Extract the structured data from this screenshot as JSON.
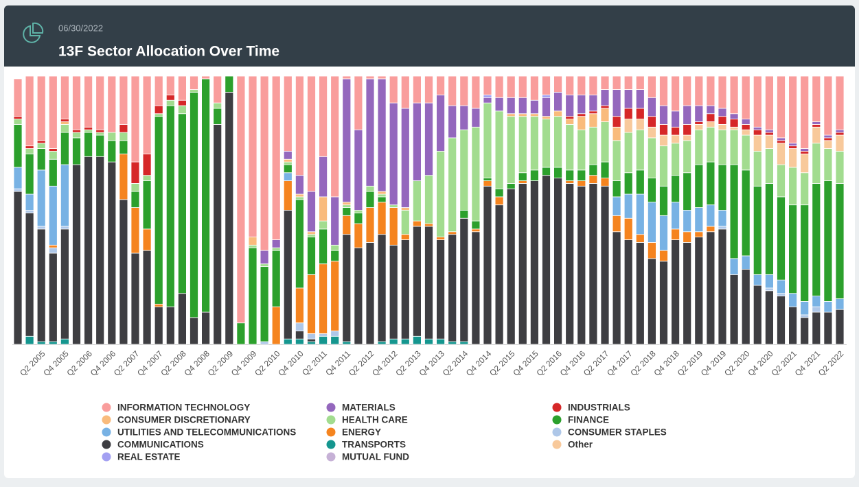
{
  "chart_data": {
    "type": "stacked-bar",
    "title": "13F Sector Allocation Over Time",
    "subtitle": "06/30/2022",
    "ylim": [
      0,
      100
    ],
    "categories": [
      null,
      null,
      "Q2 2005",
      null,
      "Q4 2005",
      null,
      "Q2 2006",
      null,
      "Q4 2006",
      null,
      "Q2 2007",
      null,
      "Q4 2007",
      null,
      "Q2 2008",
      null,
      "Q4 2008",
      null,
      "Q2 2009",
      null,
      "Q4 2009",
      null,
      "Q2 2010",
      null,
      "Q4 2010",
      null,
      "Q2 2011",
      null,
      "Q4 2011",
      null,
      "Q2 2012",
      null,
      "Q4 2012",
      null,
      "Q2 2013",
      null,
      "Q4 2013",
      null,
      "Q2 2014",
      null,
      "Q4 2014",
      null,
      "Q2 2015",
      null,
      "Q4 2015",
      null,
      "Q2 2016",
      null,
      "Q4 2016",
      null,
      "Q2 2017",
      null,
      "Q4 2017",
      null,
      "Q2 2018",
      null,
      "Q4 2018",
      null,
      "Q2 2019",
      null,
      "Q4 2019",
      null,
      "Q2 2020",
      null,
      "Q4 2020",
      null,
      "Q2 2021",
      null,
      "Q4 2021",
      null,
      "Q2 2022"
    ],
    "series": [
      {
        "name": "INFORMATION TECHNOLOGY",
        "color": "#f99d9c",
        "values": [
          14,
          26,
          24,
          27,
          16,
          20,
          19,
          20,
          21,
          18,
          32,
          29,
          11,
          7,
          9,
          5,
          1,
          10,
          0,
          92,
          60,
          65,
          61,
          28,
          37,
          43,
          30,
          45,
          1,
          20,
          1,
          1,
          10,
          12,
          10,
          10,
          7,
          11,
          11,
          12,
          7,
          8,
          8,
          8,
          9,
          7,
          6,
          7,
          7,
          7,
          5,
          5,
          5,
          5,
          8,
          11,
          13,
          11,
          11,
          11,
          12,
          14,
          16,
          19,
          20,
          23,
          25,
          27,
          17,
          22,
          20
        ]
      },
      {
        "name": "CONSUMER DISCRETIONARY",
        "color": "#f9bb7c",
        "values": [
          0,
          0,
          0,
          0,
          1,
          0,
          0,
          0,
          0,
          0,
          0,
          0,
          0,
          0,
          0,
          0,
          0,
          0,
          0,
          0,
          3,
          0,
          0,
          1,
          1,
          1,
          9,
          0,
          1,
          0,
          0,
          1,
          0,
          1,
          0,
          0,
          0,
          0,
          0,
          0,
          0,
          0,
          1,
          1,
          1,
          1,
          2,
          2,
          5,
          5,
          5,
          5,
          0,
          0,
          0,
          0,
          0,
          0,
          0,
          0,
          0,
          0,
          0,
          0,
          0,
          0,
          0,
          0,
          0,
          0,
          0
        ]
      },
      {
        "name": "UTILITIES AND TELECOMMUNICATIONS",
        "color": "#78b2e4",
        "values": [
          8,
          6,
          21,
          22,
          23,
          0,
          0,
          0,
          0,
          0,
          0,
          0,
          0,
          0,
          0,
          0,
          0,
          0,
          0,
          0,
          0,
          0,
          0,
          3,
          0,
          0,
          0,
          0,
          0,
          0,
          0,
          0,
          0,
          0,
          0,
          0,
          0,
          0,
          0,
          0,
          0,
          0,
          0,
          0,
          0,
          0,
          0,
          0,
          0,
          0,
          0,
          7,
          9,
          15,
          15,
          13,
          10,
          8,
          9,
          8,
          6,
          6,
          5,
          4,
          5,
          5,
          5,
          5,
          4,
          4,
          4
        ]
      },
      {
        "name": "COMMUNICATIONS",
        "color": "#3e3e42",
        "values": [
          57,
          46,
          42,
          33,
          41,
          67,
          70,
          70,
          68,
          54,
          34,
          35,
          14,
          14,
          19,
          10,
          12,
          82,
          94,
          0,
          0,
          0,
          0,
          48,
          3,
          1,
          0,
          0,
          40,
          36,
          38,
          40,
          35,
          37,
          41,
          42,
          37,
          40,
          46,
          42,
          59,
          52,
          58,
          60,
          61,
          63,
          62,
          60,
          59,
          60,
          59,
          42,
          39,
          38,
          32,
          31,
          39,
          38,
          40,
          42,
          43,
          26,
          28,
          22,
          20,
          18,
          14,
          10,
          12,
          12,
          13
        ]
      },
      {
        "name": "REAL ESTATE",
        "color": "#a3a0f2",
        "values": [
          0,
          0,
          0,
          0,
          0,
          0,
          0,
          0,
          0,
          0,
          0,
          0,
          0,
          0,
          0,
          0,
          0,
          0,
          0,
          0,
          0,
          0,
          0,
          0,
          0,
          0,
          0,
          0,
          0,
          0,
          0,
          0,
          0,
          0,
          0,
          0,
          0,
          0,
          0,
          0,
          1,
          0,
          0,
          0,
          0,
          1,
          0,
          0,
          0,
          0,
          0,
          0,
          0,
          0,
          0,
          0,
          0,
          0,
          0,
          0,
          0,
          0,
          0,
          0,
          0,
          0,
          0,
          0,
          0,
          0,
          0
        ]
      },
      {
        "name": "MATERIALS",
        "color": "#9467bd",
        "values": [
          0,
          0,
          0,
          0,
          0,
          0,
          0,
          0,
          0,
          0,
          0,
          0,
          0,
          0,
          0,
          0,
          0,
          0,
          0,
          0,
          0,
          5,
          3,
          3,
          7,
          15,
          15,
          18,
          46,
          30,
          40,
          42,
          38,
          37,
          29,
          27,
          21,
          12,
          9,
          7,
          2,
          5,
          6,
          6,
          5,
          7,
          7,
          8,
          7,
          6,
          6,
          10,
          7,
          7,
          7,
          7,
          6,
          7,
          6,
          3,
          3,
          2,
          2,
          1,
          1,
          1,
          1,
          1,
          1,
          1,
          1
        ]
      },
      {
        "name": "HEALTH CARE",
        "color": "#a2dc8f",
        "values": [
          2,
          2,
          2,
          3,
          3,
          2,
          1,
          1,
          3,
          3,
          3,
          2,
          1,
          2,
          3,
          1,
          0,
          2,
          0,
          0,
          1,
          1,
          1,
          1,
          1,
          1,
          3,
          2,
          1,
          1,
          2,
          1,
          1,
          9,
          15,
          18,
          32,
          35,
          30,
          35,
          28,
          29,
          25,
          21,
          20,
          18,
          19,
          17,
          15,
          14,
          15,
          15,
          15,
          15,
          15,
          15,
          12,
          12,
          13,
          13,
          13,
          13,
          13,
          13,
          13,
          12,
          14,
          12,
          15,
          12,
          12
        ]
      },
      {
        "name": "ENERGY",
        "color": "#f5841f",
        "values": [
          0,
          0,
          0,
          1,
          0,
          0,
          0,
          0,
          0,
          17,
          17,
          8,
          1,
          0,
          0,
          0,
          0,
          0,
          0,
          0,
          0,
          0,
          14,
          11,
          13,
          22,
          26,
          26,
          7,
          9,
          13,
          12,
          14,
          2,
          2,
          1,
          1,
          1,
          0,
          1,
          2,
          3,
          0,
          1,
          0,
          0,
          0,
          1,
          2,
          3,
          3,
          6,
          8,
          3,
          6,
          4,
          4,
          4,
          2,
          2,
          0,
          0,
          0,
          0,
          0,
          0,
          0,
          0,
          0,
          0,
          0
        ]
      },
      {
        "name": "TRANSPORTS",
        "color": "#15968f",
        "values": [
          0,
          3,
          1,
          1,
          2,
          0,
          0,
          0,
          0,
          0,
          0,
          0,
          0,
          0,
          0,
          0,
          0,
          0,
          0,
          0,
          0,
          0,
          0,
          2,
          2,
          1,
          3,
          3,
          1,
          0,
          0,
          1,
          2,
          2,
          3,
          2,
          2,
          1,
          1,
          0,
          0,
          0,
          0,
          0,
          0,
          0,
          0,
          0,
          0,
          0,
          0,
          0,
          0,
          0,
          0,
          0,
          0,
          0,
          0,
          0,
          0,
          0,
          0,
          0,
          0,
          0,
          0,
          0,
          0,
          0,
          0
        ]
      },
      {
        "name": "MUTUAL FUND",
        "color": "#c6b1d6",
        "values": [
          0,
          0,
          0,
          0,
          0,
          0,
          0,
          0,
          0,
          0,
          0,
          0,
          0,
          0,
          0,
          0,
          0,
          0,
          0,
          0,
          0,
          0,
          0,
          0,
          0,
          0,
          0,
          0,
          0,
          0,
          0,
          0,
          0,
          0,
          0,
          0,
          0,
          0,
          0,
          0,
          0,
          0,
          0,
          0,
          0,
          0,
          0,
          0,
          0,
          0,
          0,
          0,
          0,
          0,
          0,
          0,
          0,
          0,
          0,
          0,
          0,
          0,
          0,
          0,
          0,
          0,
          0,
          0,
          0,
          0,
          0
        ]
      },
      {
        "name": "INDUSTRIALS",
        "color": "#d62728",
        "values": [
          1,
          1,
          1,
          1,
          1,
          1,
          1,
          1,
          0,
          3,
          8,
          8,
          3,
          2,
          2,
          0,
          0,
          0,
          0,
          0,
          0,
          0,
          0,
          0,
          0,
          0,
          0,
          0,
          0,
          0,
          0,
          0,
          0,
          0,
          0,
          0,
          0,
          0,
          0,
          0,
          0,
          0,
          0,
          0,
          0,
          0,
          0,
          1,
          1,
          1,
          1,
          4,
          4,
          4,
          4,
          4,
          3,
          4,
          1,
          3,
          3,
          3,
          2,
          2,
          1,
          1,
          1,
          1,
          1,
          1,
          1
        ]
      },
      {
        "name": "FINANCE",
        "color": "#2ca02c",
        "values": [
          16,
          15,
          8,
          10,
          12,
          10,
          9,
          8,
          8,
          5,
          6,
          18,
          70,
          75,
          67,
          84,
          87,
          6,
          6,
          8,
          36,
          28,
          21,
          3,
          33,
          14,
          13,
          4,
          3,
          4,
          6,
          2,
          0,
          0,
          0,
          0,
          0,
          0,
          3,
          3,
          1,
          3,
          2,
          3,
          4,
          3,
          4,
          4,
          4,
          4,
          6,
          6,
          8,
          9,
          9,
          11,
          10,
          14,
          16,
          16,
          17,
          35,
          32,
          33,
          34,
          31,
          33,
          36,
          42,
          45,
          43
        ]
      },
      {
        "name": "CONSUMER STAPLES",
        "color": "#aec7e8",
        "values": [
          1,
          1,
          1,
          2,
          1,
          0,
          0,
          0,
          0,
          0,
          0,
          0,
          0,
          0,
          0,
          0,
          0,
          0,
          0,
          0,
          0,
          1,
          0,
          0,
          3,
          2,
          1,
          2,
          0,
          0,
          0,
          0,
          0,
          0,
          0,
          0,
          0,
          0,
          0,
          0,
          0,
          0,
          0,
          0,
          0,
          0,
          0,
          0,
          0,
          0,
          0,
          0,
          0,
          0,
          0,
          0,
          0,
          0,
          0,
          0,
          1,
          0,
          0,
          0,
          1,
          1,
          0,
          1,
          2,
          0,
          0
        ]
      },
      {
        "name": "Other",
        "color": "#f8c99b",
        "values": [
          0,
          0,
          0,
          0,
          0,
          0,
          0,
          0,
          0,
          0,
          0,
          0,
          0,
          0,
          0,
          0,
          0,
          0,
          0,
          0,
          0,
          0,
          0,
          0,
          0,
          0,
          0,
          0,
          0,
          0,
          0,
          0,
          0,
          0,
          0,
          0,
          0,
          0,
          0,
          0,
          0,
          0,
          0,
          0,
          0,
          0,
          0,
          0,
          0,
          0,
          0,
          0,
          5,
          4,
          4,
          4,
          3,
          2,
          2,
          2,
          2,
          1,
          2,
          6,
          5,
          8,
          7,
          7,
          6,
          3,
          6
        ]
      }
    ]
  }
}
